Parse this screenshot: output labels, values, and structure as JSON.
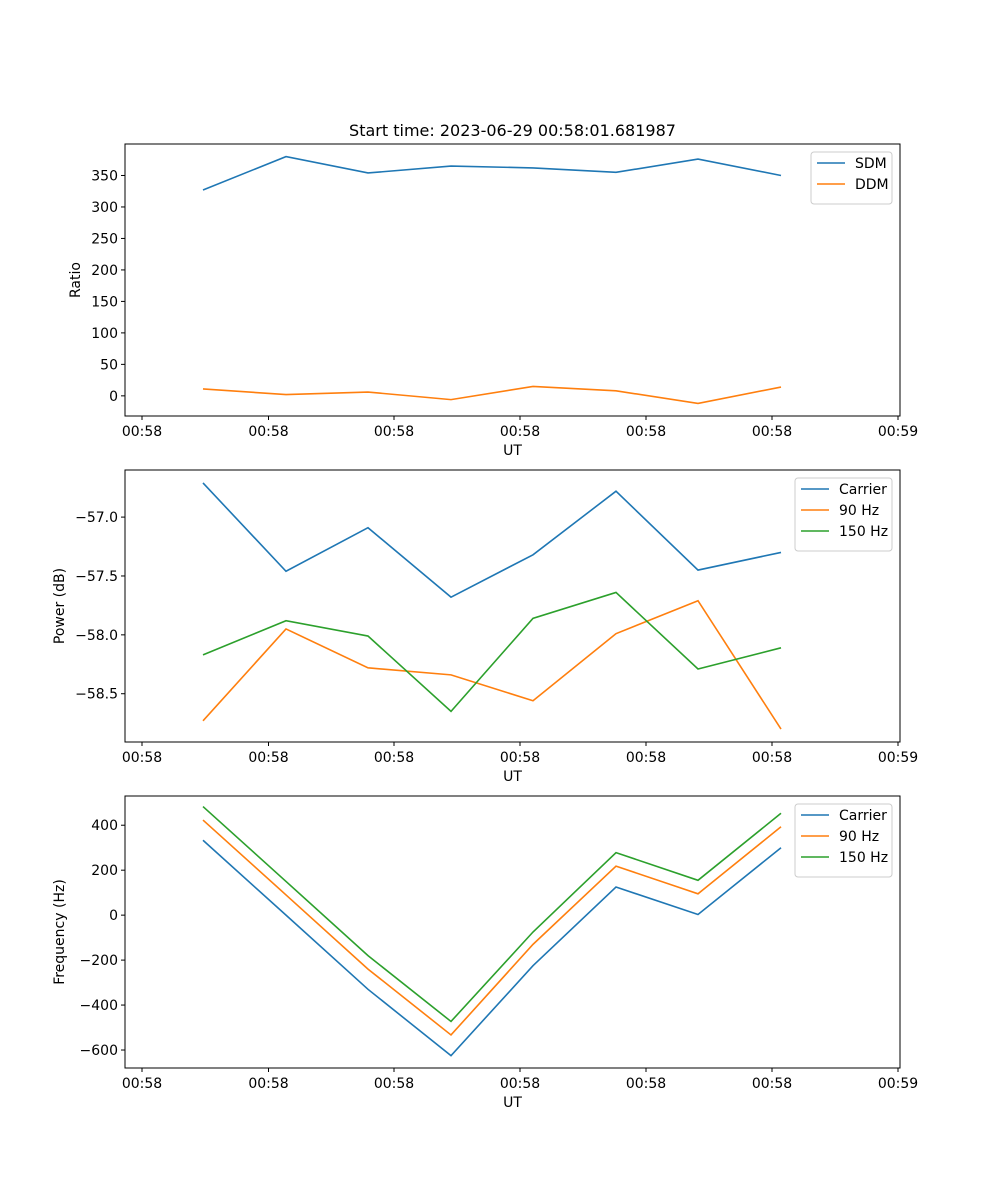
{
  "figure": {
    "title": "Start time: 2023-06-29 00:58:01.681987"
  },
  "chart_data": [
    {
      "type": "line",
      "title": "Start time: 2023-06-29 00:58:01.681987",
      "xlabel": "UT",
      "ylabel": "Ratio",
      "x_ticks": [
        "00:58",
        "00:58",
        "00:58",
        "00:58",
        "00:58",
        "00:58",
        "00:58"
      ],
      "x_tick_last": "00:59",
      "ylim": [
        -32,
        400
      ],
      "y_ticks": [
        0,
        50,
        100,
        150,
        200,
        250,
        300,
        350
      ],
      "y_tick_labels": [
        "0",
        "50",
        "100",
        "150",
        "200",
        "250",
        "300",
        "350"
      ],
      "legend_position": "top-right",
      "grid": false,
      "series": [
        {
          "name": "SDM",
          "color": "#1f77b4",
          "values": [
            327,
            380,
            354,
            365,
            362,
            355,
            376,
            350
          ]
        },
        {
          "name": "DDM",
          "color": "#ff7f0e",
          "values": [
            11,
            2,
            6,
            -6,
            15,
            8,
            -12,
            14
          ]
        }
      ]
    },
    {
      "type": "line",
      "xlabel": "UT",
      "ylabel": "Power (dB)",
      "x_ticks": [
        "00:58",
        "00:58",
        "00:58",
        "00:58",
        "00:58",
        "00:58",
        "00:58"
      ],
      "x_tick_last": "00:59",
      "ylim": [
        -58.91,
        -56.6
      ],
      "y_ticks": [
        -58.5,
        -58.0,
        -57.5,
        -57.0
      ],
      "y_tick_labels": [
        "−58.5",
        "−58.0",
        "−57.5",
        "−57.0"
      ],
      "legend_position": "top-right",
      "grid": false,
      "series": [
        {
          "name": "Carrier",
          "color": "#1f77b4",
          "values": [
            -56.71,
            -57.46,
            -57.09,
            -57.68,
            -57.32,
            -56.78,
            -57.45,
            -57.3
          ]
        },
        {
          "name": "90 Hz",
          "color": "#ff7f0e",
          "values": [
            -58.73,
            -57.95,
            -58.28,
            -58.34,
            -58.56,
            -57.99,
            -57.71,
            -58.8
          ]
        },
        {
          "name": "150 Hz",
          "color": "#2ca02c",
          "values": [
            -58.17,
            -57.88,
            -58.01,
            -58.65,
            -57.86,
            -57.64,
            -58.29,
            -58.11
          ]
        }
      ]
    },
    {
      "type": "line",
      "xlabel": "UT",
      "ylabel": "Frequency (Hz)",
      "x_ticks": [
        "00:58",
        "00:58",
        "00:58",
        "00:58",
        "00:58",
        "00:58",
        "00:58"
      ],
      "x_tick_last": "00:59",
      "ylim": [
        -680,
        530
      ],
      "y_ticks": [
        -600,
        -400,
        -200,
        0,
        200,
        400
      ],
      "y_tick_labels": [
        "−600",
        "−400",
        "−200",
        "0",
        "200",
        "400"
      ],
      "legend_position": "top-right",
      "grid": false,
      "series": [
        {
          "name": "Carrier",
          "color": "#1f77b4",
          "values": [
            333,
            0,
            -330,
            -625,
            -225,
            125,
            3,
            300
          ]
        },
        {
          "name": "90 Hz",
          "color": "#ff7f0e",
          "values": [
            423,
            90,
            -240,
            -533,
            -130,
            218,
            95,
            393
          ]
        },
        {
          "name": "150 Hz",
          "color": "#2ca02c",
          "values": [
            483,
            150,
            -180,
            -473,
            -75,
            278,
            155,
            453
          ]
        }
      ]
    }
  ]
}
